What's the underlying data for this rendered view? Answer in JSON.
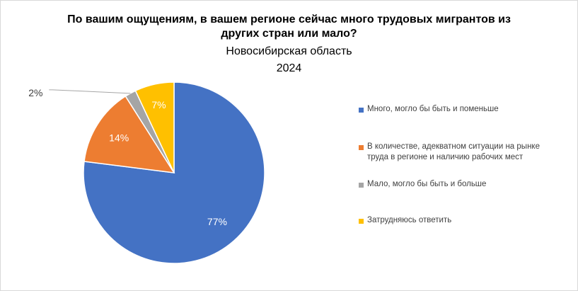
{
  "chart_data": {
    "type": "pie",
    "title": "По вашим ощущениям, в вашем регионе сейчас много трудовых мигрантов из других стран или мало?",
    "title_lines": [
      "По вашим ощущениям, в вашем регионе сейчас много трудовых мигрантов из",
      "других стран или мало?"
    ],
    "subtitle": "Новосибирская область",
    "year": "2024",
    "categories": [
      "Много,  могло бы быть и поменьше",
      "В количестве, адекватном ситуации на рынке труда в регионе и наличию рабочих мест",
      "Мало,  могло бы быть и больше",
      "Затрудняюсь ответить"
    ],
    "values": [
      77,
      14,
      2,
      7
    ],
    "labels": [
      "77%",
      "14%",
      "2%",
      "7%"
    ],
    "colors": [
      "#4472c4",
      "#ed7d31",
      "#a5a5a5",
      "#ffc000"
    ],
    "legend_position": "right"
  }
}
